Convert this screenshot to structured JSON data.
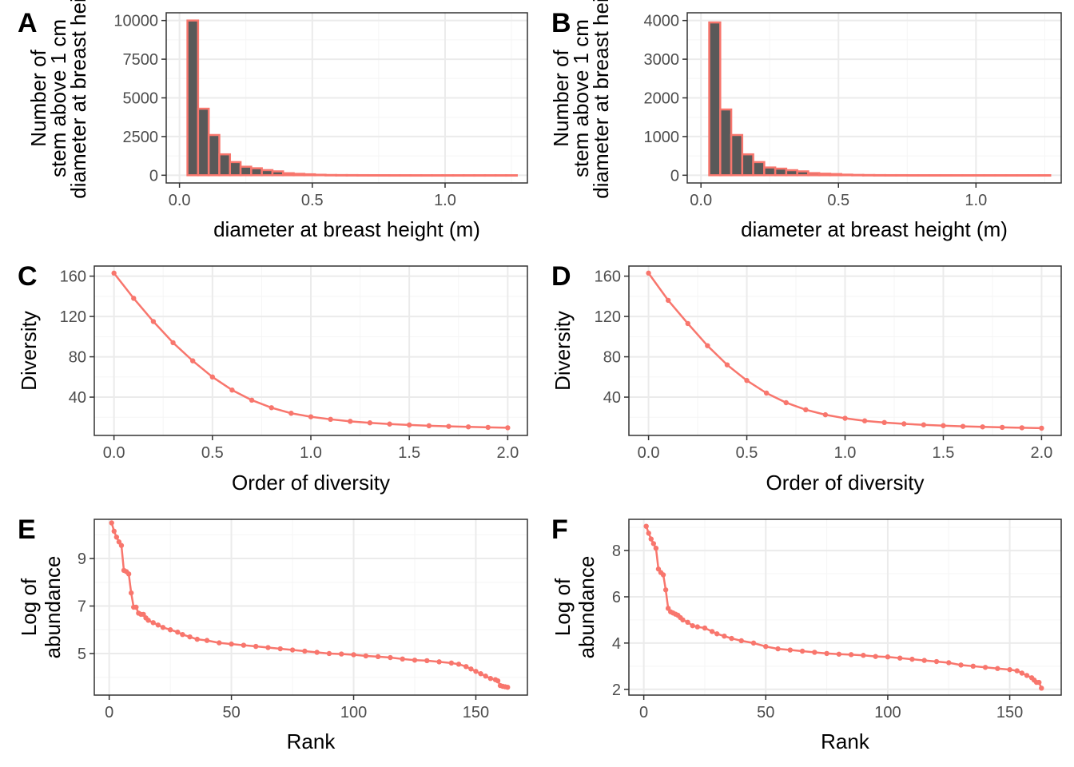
{
  "colors": {
    "accent": "#F8766D",
    "bar_fill": "#595959",
    "grid_major": "#ebebeb",
    "grid_minor": "#f5f5f5",
    "panel_border": "#333333",
    "tick_text": "#4d4d4d"
  },
  "chart_data": [
    {
      "type": "bar",
      "panel_label": "A",
      "title": "",
      "xlabel": "diameter at breast height (m)",
      "ylabel_lines": [
        "Number of",
        "stem above 1 cm",
        "diameter at breast hei"
      ],
      "xlim": [
        -0.05,
        1.31
      ],
      "ylim": [
        -500,
        10500
      ],
      "xticks": [
        0.0,
        0.5,
        1.0
      ],
      "xtick_labels": [
        "0.0",
        "0.5",
        "1.0"
      ],
      "yticks": [
        0,
        2500,
        5000,
        7500,
        10000
      ],
      "ytick_labels": [
        "0",
        "2500",
        "5000",
        "7500",
        "10000"
      ],
      "bin_width": 0.04,
      "bins_start": [
        0.03,
        0.07,
        0.11,
        0.15,
        0.19,
        0.23,
        0.27,
        0.31,
        0.35,
        0.39,
        0.43,
        0.47,
        0.51,
        0.55,
        0.59,
        0.63,
        0.67,
        0.71,
        0.75,
        0.79,
        0.83,
        0.87,
        0.91,
        0.95,
        0.99,
        1.03,
        1.07,
        1.11,
        1.15,
        1.19,
        1.23
      ],
      "values": [
        10000,
        4300,
        2600,
        1350,
        850,
        550,
        450,
        330,
        250,
        130,
        90,
        60,
        30,
        15,
        10,
        8,
        5,
        4,
        3,
        2,
        2,
        1,
        1,
        1,
        1,
        1,
        1,
        1,
        1,
        1,
        1
      ]
    },
    {
      "type": "bar",
      "panel_label": "B",
      "title": "",
      "xlabel": "diameter at breast height (m)",
      "ylabel_lines": [
        "Number of",
        "stem above 1 cm",
        "diameter at breast hei"
      ],
      "xlim": [
        -0.05,
        1.31
      ],
      "ylim": [
        -200,
        4200
      ],
      "xticks": [
        0.0,
        0.5,
        1.0
      ],
      "xtick_labels": [
        "0.0",
        "0.5",
        "1.0"
      ],
      "yticks": [
        0,
        1000,
        2000,
        3000,
        4000
      ],
      "ytick_labels": [
        "0",
        "1000",
        "2000",
        "3000",
        "4000"
      ],
      "bin_width": 0.04,
      "bins_start": [
        0.03,
        0.07,
        0.11,
        0.15,
        0.19,
        0.23,
        0.27,
        0.31,
        0.35,
        0.39,
        0.43,
        0.47,
        0.51,
        0.55,
        0.59,
        0.63,
        0.67,
        0.71,
        0.75,
        0.79,
        0.83,
        0.87,
        0.91,
        0.95,
        0.99,
        1.03,
        1.07,
        1.11,
        1.15,
        1.19,
        1.23
      ],
      "values": [
        3950,
        1700,
        1040,
        540,
        340,
        200,
        170,
        130,
        100,
        55,
        40,
        30,
        15,
        8,
        5,
        3,
        2,
        2,
        1,
        1,
        1,
        1,
        1,
        1,
        1,
        1,
        1,
        1,
        1,
        1,
        1
      ]
    },
    {
      "type": "line",
      "panel_label": "C",
      "title": "",
      "xlabel": "Order of diversity",
      "ylabel_lines": [
        "Diversity"
      ],
      "xlim": [
        -0.1,
        2.1
      ],
      "ylim": [
        2,
        170
      ],
      "xticks": [
        0.0,
        0.5,
        1.0,
        1.5,
        2.0
      ],
      "xtick_labels": [
        "0.0",
        "0.5",
        "1.0",
        "1.5",
        "2.0"
      ],
      "yticks": [
        40,
        80,
        120,
        160
      ],
      "ytick_labels": [
        "40",
        "80",
        "120",
        "160"
      ],
      "x": [
        0.0,
        0.1,
        0.2,
        0.3,
        0.4,
        0.5,
        0.6,
        0.7,
        0.8,
        0.9,
        1.0,
        1.1,
        1.2,
        1.3,
        1.4,
        1.5,
        1.6,
        1.7,
        1.8,
        1.9,
        2.0
      ],
      "y": [
        163,
        138,
        115,
        94,
        76,
        60,
        47,
        37,
        29.5,
        24,
        20.5,
        18,
        16,
        14.5,
        13.3,
        12.4,
        11.6,
        11,
        10.5,
        10,
        9.6
      ]
    },
    {
      "type": "line",
      "panel_label": "D",
      "title": "",
      "xlabel": "Order of diversity",
      "ylabel_lines": [
        "Diversity"
      ],
      "xlim": [
        -0.1,
        2.1
      ],
      "ylim": [
        2,
        170
      ],
      "xticks": [
        0.0,
        0.5,
        1.0,
        1.5,
        2.0
      ],
      "xtick_labels": [
        "0.0",
        "0.5",
        "1.0",
        "1.5",
        "2.0"
      ],
      "yticks": [
        40,
        80,
        120,
        160
      ],
      "ytick_labels": [
        "40",
        "80",
        "120",
        "160"
      ],
      "x": [
        0.0,
        0.1,
        0.2,
        0.3,
        0.4,
        0.5,
        0.6,
        0.7,
        0.8,
        0.9,
        1.0,
        1.1,
        1.2,
        1.3,
        1.4,
        1.5,
        1.6,
        1.7,
        1.8,
        1.9,
        2.0
      ],
      "y": [
        163,
        136,
        113,
        91,
        72,
        56.5,
        44,
        34.5,
        27.5,
        22.5,
        19,
        16.5,
        14.8,
        13.5,
        12.5,
        11.7,
        11,
        10.5,
        10,
        9.6,
        9.2
      ]
    },
    {
      "type": "line",
      "panel_label": "E",
      "title": "",
      "xlabel": "Rank",
      "ylabel_lines": [
        "Log of",
        "abundance"
      ],
      "xlim": [
        -6.1,
        171.1
      ],
      "ylim": [
        3.25,
        10.65
      ],
      "xticks": [
        0,
        50,
        100,
        150
      ],
      "xtick_labels": [
        "0",
        "50",
        "100",
        "150"
      ],
      "yticks": [
        5,
        7,
        9
      ],
      "ytick_labels": [
        "5",
        "7",
        "9"
      ],
      "x": [
        1,
        2,
        3,
        4,
        5,
        6,
        7,
        8,
        9,
        10,
        11,
        12,
        13,
        14,
        15,
        16,
        18,
        20,
        22,
        25,
        28,
        30,
        33,
        36,
        40,
        45,
        50,
        55,
        60,
        65,
        70,
        75,
        80,
        85,
        90,
        95,
        100,
        105,
        110,
        115,
        120,
        125,
        130,
        135,
        140,
        143,
        146,
        148,
        150,
        152,
        154,
        156,
        158,
        159,
        160,
        161,
        162,
        163
      ],
      "y": [
        10.5,
        10.15,
        9.9,
        9.7,
        9.55,
        8.5,
        8.45,
        8.35,
        7.55,
        6.95,
        6.95,
        6.7,
        6.65,
        6.65,
        6.5,
        6.4,
        6.3,
        6.2,
        6.1,
        6.0,
        5.9,
        5.8,
        5.7,
        5.6,
        5.55,
        5.45,
        5.4,
        5.35,
        5.3,
        5.25,
        5.2,
        5.15,
        5.1,
        5.05,
        5.0,
        4.98,
        4.95,
        4.9,
        4.87,
        4.83,
        4.77,
        4.72,
        4.7,
        4.65,
        4.6,
        4.55,
        4.45,
        4.35,
        4.25,
        4.15,
        4.05,
        3.95,
        3.9,
        3.85,
        3.65,
        3.62,
        3.6,
        3.58
      ]
    },
    {
      "type": "line",
      "panel_label": "F",
      "title": "",
      "xlabel": "Rank",
      "ylabel_lines": [
        "Log of",
        "abundance"
      ],
      "xlim": [
        -6.1,
        171.1
      ],
      "ylim": [
        1.75,
        9.35
      ],
      "xticks": [
        0,
        50,
        100,
        150
      ],
      "xtick_labels": [
        "0",
        "50",
        "100",
        "150"
      ],
      "yticks": [
        2,
        4,
        6,
        8
      ],
      "ytick_labels": [
        "2",
        "4",
        "6",
        "8"
      ],
      "x": [
        1,
        2,
        3,
        4,
        5,
        6,
        7,
        8,
        9,
        10,
        11,
        12,
        13,
        14,
        15,
        16,
        18,
        20,
        22,
        25,
        28,
        30,
        33,
        36,
        40,
        45,
        50,
        55,
        60,
        65,
        70,
        75,
        80,
        85,
        90,
        95,
        100,
        105,
        110,
        115,
        120,
        125,
        130,
        135,
        140,
        145,
        150,
        153,
        155,
        157,
        159,
        160,
        161,
        162,
        163
      ],
      "y": [
        9.05,
        8.75,
        8.5,
        8.3,
        8.1,
        7.2,
        7.05,
        6.95,
        6.3,
        5.5,
        5.35,
        5.3,
        5.25,
        5.2,
        5.1,
        5.0,
        4.9,
        4.75,
        4.7,
        4.65,
        4.5,
        4.4,
        4.3,
        4.2,
        4.1,
        4.0,
        3.85,
        3.75,
        3.7,
        3.65,
        3.6,
        3.55,
        3.52,
        3.5,
        3.47,
        3.42,
        3.4,
        3.35,
        3.3,
        3.25,
        3.2,
        3.15,
        3.05,
        3.0,
        2.95,
        2.9,
        2.85,
        2.8,
        2.7,
        2.6,
        2.5,
        2.4,
        2.3,
        2.3,
        2.05
      ]
    }
  ]
}
